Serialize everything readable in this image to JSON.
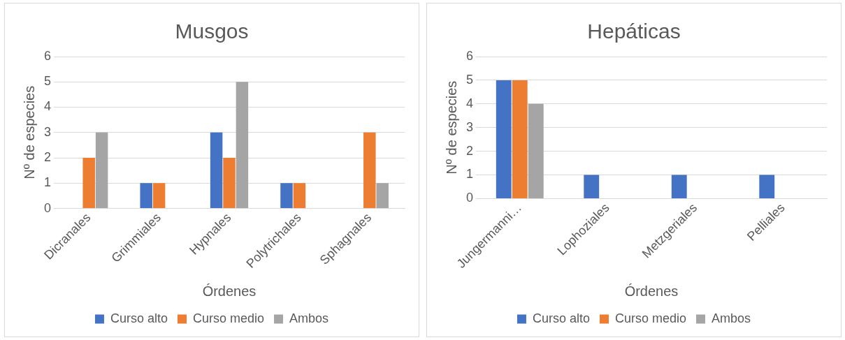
{
  "chart_data": [
    {
      "type": "bar",
      "title": "Musgos",
      "xlabel": "Órdenes",
      "ylabel": "Nº de especies",
      "categories": [
        "Dicranales",
        "Grimmiales",
        "Hypnales",
        "Polytrichales",
        "Sphagnales"
      ],
      "series": [
        {
          "name": "Curso alto",
          "color": "#4472c4",
          "values": [
            0,
            1,
            3,
            1,
            0
          ]
        },
        {
          "name": "Curso medio",
          "color": "#ed7d31",
          "values": [
            2,
            1,
            2,
            1,
            3
          ]
        },
        {
          "name": "Ambos",
          "color": "#a5a5a5",
          "values": [
            3,
            0,
            5,
            0,
            1
          ]
        }
      ],
      "ylim": [
        0,
        6
      ],
      "yticks": [
        0,
        1,
        2,
        3,
        4,
        5,
        6
      ],
      "grid": "y",
      "legend": "bottom"
    },
    {
      "type": "bar",
      "title": "Hepáticas",
      "xlabel": "Órdenes",
      "ylabel": "Nº de especies",
      "categories": [
        "Jungermanni…",
        "Lophoziales",
        "Metzgeriales",
        "Pelliales"
      ],
      "series": [
        {
          "name": "Curso alto",
          "color": "#4472c4",
          "values": [
            5,
            1,
            1,
            1
          ]
        },
        {
          "name": "Curso medio",
          "color": "#ed7d31",
          "values": [
            5,
            0,
            0,
            0
          ]
        },
        {
          "name": "Ambos",
          "color": "#a5a5a5",
          "values": [
            4,
            0,
            0,
            0
          ]
        }
      ],
      "ylim": [
        0,
        6
      ],
      "yticks": [
        0,
        1,
        2,
        3,
        4,
        5,
        6
      ],
      "grid": "y",
      "legend": "bottom"
    }
  ]
}
